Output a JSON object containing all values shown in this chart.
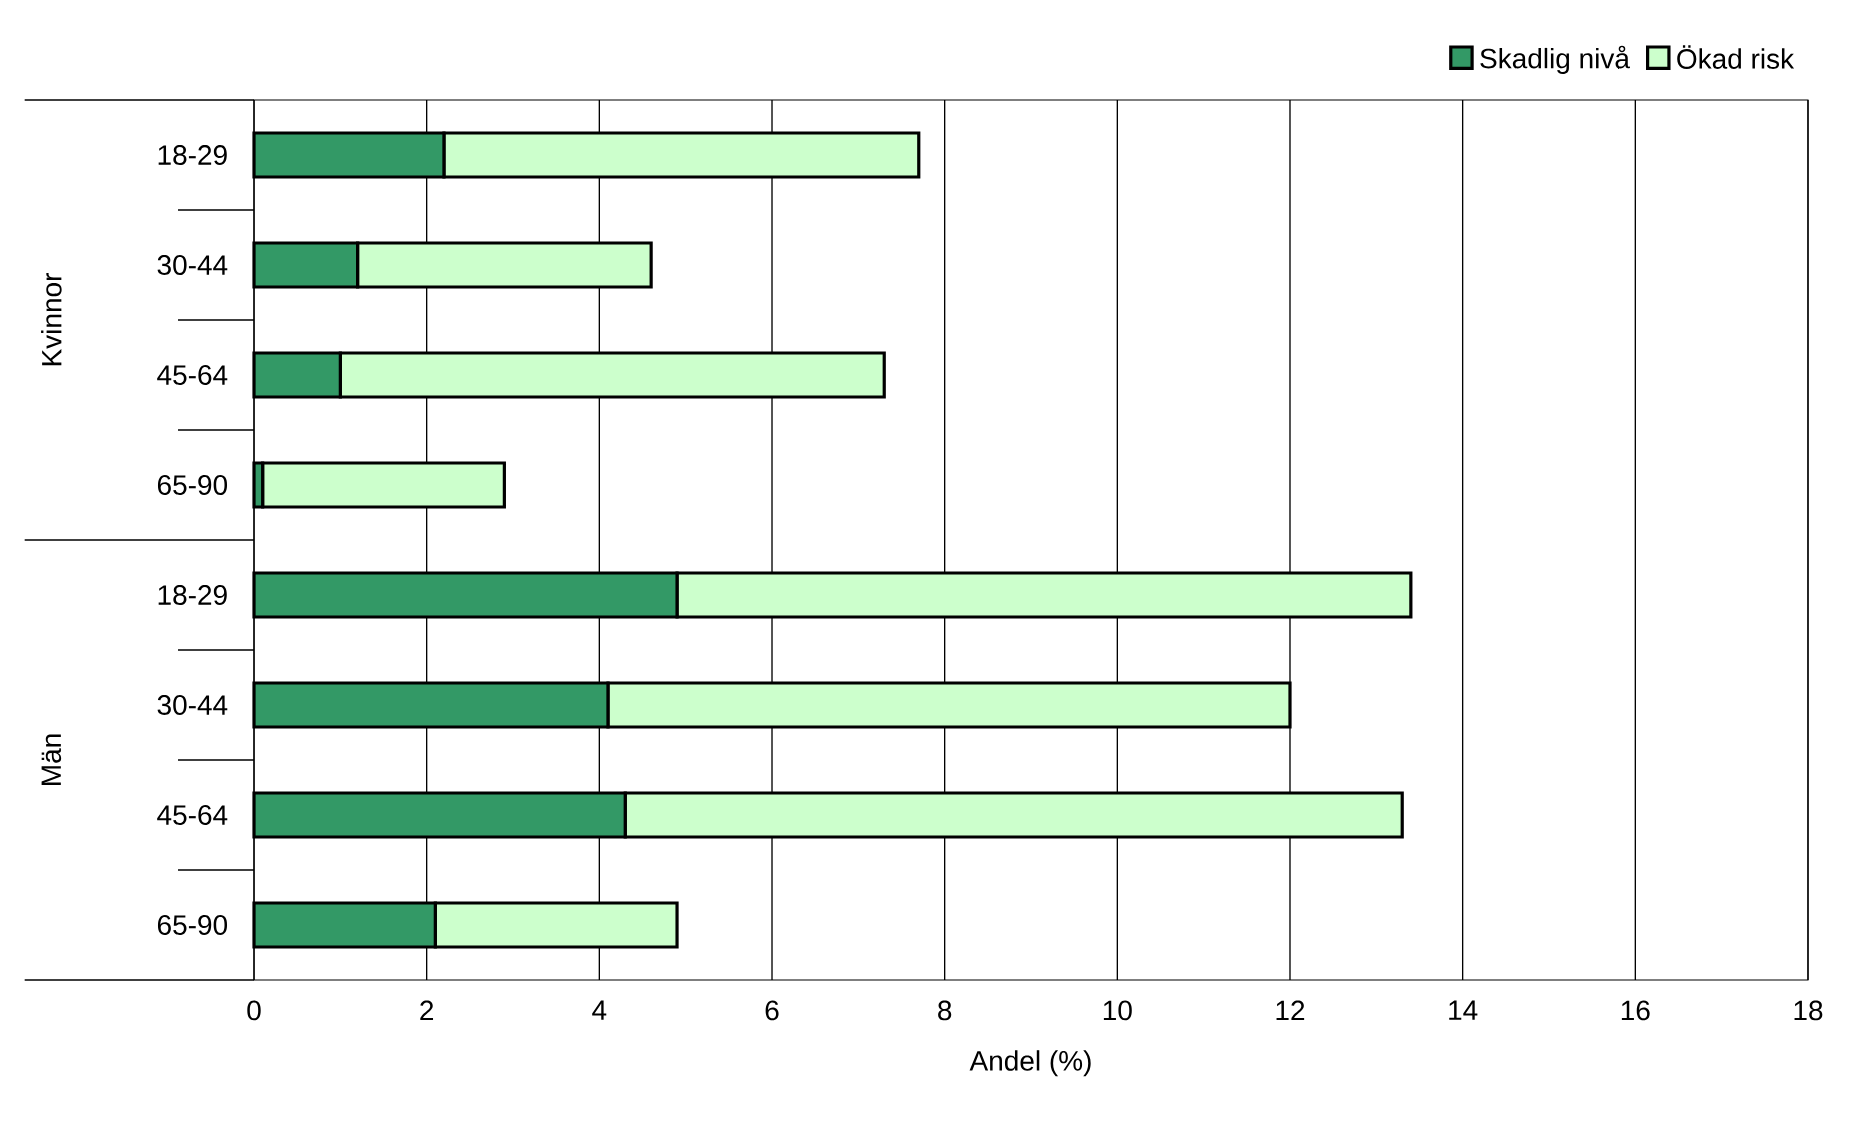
{
  "chart_data": {
    "type": "bar",
    "orientation": "horizontal",
    "stacked": true,
    "categories": [
      "18-29",
      "30-44",
      "45-64",
      "65-90",
      "18-29",
      "30-44",
      "45-64",
      "65-90"
    ],
    "series": [
      {
        "name": "Skadlig nivå",
        "color": "#339966",
        "values": [
          2.2,
          1.2,
          1.0,
          0.1,
          4.9,
          4.1,
          4.3,
          2.1
        ]
      },
      {
        "name": "Ökad risk",
        "color": "#ccffcc",
        "values": [
          5.5,
          3.4,
          6.3,
          2.8,
          8.5,
          7.9,
          9.0,
          2.8
        ]
      }
    ],
    "xlabel": "Andel (%)",
    "xlim": [
      0,
      18
    ],
    "xticks": [
      0,
      2,
      4,
      6,
      8,
      10,
      12,
      14,
      16,
      18
    ],
    "grid": "x",
    "legend": "top right",
    "annotations": [
      "Kvinnor",
      "Män"
    ]
  }
}
